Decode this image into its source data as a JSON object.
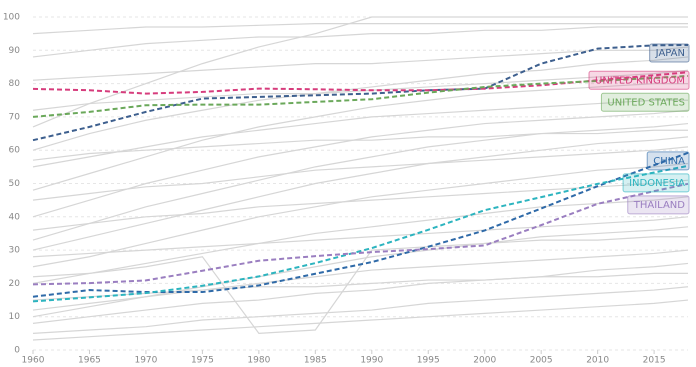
{
  "chart_data": {
    "type": "line",
    "x": [
      1960,
      1965,
      1970,
      1975,
      1980,
      1985,
      1990,
      1995,
      2000,
      2005,
      2010,
      2015,
      2018
    ],
    "xlim": [
      1960,
      2018
    ],
    "xticks": [
      1960,
      1965,
      1970,
      1975,
      1980,
      1985,
      1990,
      1995,
      2000,
      2005,
      2010,
      2015
    ],
    "ylim": [
      0,
      100
    ],
    "yticks": [
      0,
      10,
      20,
      30,
      40,
      50,
      60,
      70,
      80,
      90,
      100
    ],
    "grid": true,
    "series": [
      {
        "color": "#d6d6d6",
        "values": [
          95,
          96,
          97,
          97,
          97.5,
          98,
          98,
          98,
          98,
          98,
          98,
          98,
          98
        ]
      },
      {
        "color": "#d6d6d6",
        "values": [
          88,
          90,
          92,
          93,
          94,
          94,
          95,
          95,
          96,
          96,
          97,
          97,
          97
        ]
      },
      {
        "color": "#d6d6d6",
        "values": [
          67,
          74,
          80,
          86,
          91,
          95,
          100,
          100,
          100,
          100,
          100,
          100,
          100
        ]
      },
      {
        "color": "#d6d6d6",
        "values": [
          81,
          82,
          83,
          84,
          85,
          86,
          86,
          87,
          88,
          89,
          90,
          90,
          91
        ]
      },
      {
        "color": "#d6d6d6",
        "values": [
          60,
          65,
          69,
          72,
          75,
          77,
          79,
          81,
          83,
          84,
          86,
          87,
          88
        ]
      },
      {
        "color": "#d6d6d6",
        "values": [
          72,
          74,
          75,
          76,
          77,
          77,
          78,
          79,
          80,
          81,
          82,
          83,
          84
        ]
      },
      {
        "color": "#d6d6d6",
        "values": [
          48,
          53,
          58,
          63,
          67,
          70,
          73,
          75,
          77,
          78,
          79,
          80,
          80
        ]
      },
      {
        "color": "#d6d6d6",
        "values": [
          55,
          58,
          61,
          64,
          66,
          68,
          70,
          71,
          72,
          73,
          74,
          75,
          75
        ]
      },
      {
        "color": "#d6d6d6",
        "values": [
          40,
          45,
          50,
          54,
          58,
          61,
          64,
          66,
          68,
          69,
          70,
          71,
          72
        ]
      },
      {
        "color": "#d6d6d6",
        "values": [
          33,
          38,
          43,
          47,
          51,
          55,
          58,
          61,
          63,
          65,
          66,
          67,
          68
        ]
      },
      {
        "color": "#d6d6d6",
        "values": [
          57,
          59,
          60,
          61,
          62,
          63,
          63,
          64,
          64,
          65,
          65,
          66,
          66
        ]
      },
      {
        "color": "#d6d6d6",
        "values": [
          30,
          34,
          38,
          42,
          46,
          50,
          53,
          56,
          58,
          60,
          62,
          63,
          64
        ]
      },
      {
        "color": "#d6d6d6",
        "values": [
          45,
          47,
          49,
          50,
          52,
          54,
          55,
          56,
          57,
          58,
          59,
          60,
          61
        ]
      },
      {
        "color": "#d6d6d6",
        "values": [
          25,
          28,
          32,
          36,
          40,
          43,
          46,
          48,
          50,
          52,
          54,
          55,
          56
        ]
      },
      {
        "color": "#d6d6d6",
        "values": [
          36,
          38,
          40,
          41,
          43,
          44,
          45,
          46,
          47,
          48,
          49,
          50,
          51
        ]
      },
      {
        "color": "#d6d6d6",
        "values": [
          20,
          23,
          26,
          29,
          32,
          35,
          37,
          39,
          41,
          43,
          44,
          45,
          46
        ]
      },
      {
        "color": "#d6d6d6",
        "values": [
          28,
          29,
          30,
          31,
          32,
          33,
          34,
          35,
          36,
          37,
          38,
          39,
          40
        ]
      },
      {
        "color": "#d6d6d6",
        "values": [
          10,
          13,
          16,
          19,
          22,
          25,
          28,
          30,
          32,
          34,
          35,
          36,
          37
        ]
      },
      {
        "color": "#d6d6d6",
        "values": [
          22,
          23,
          25,
          28,
          5,
          6,
          30,
          31,
          32,
          33,
          33,
          34,
          34
        ]
      },
      {
        "color": "#d6d6d6",
        "values": [
          12,
          14,
          16,
          18,
          20,
          22,
          24,
          25,
          26,
          27,
          28,
          29,
          30
        ]
      },
      {
        "color": "#d6d6d6",
        "values": [
          8,
          10,
          12,
          14,
          15,
          17,
          18,
          20,
          21,
          22,
          24,
          25,
          26
        ]
      },
      {
        "color": "#d6d6d6",
        "values": [
          15,
          16,
          17,
          18,
          19,
          19,
          20,
          21,
          21,
          22,
          22,
          23,
          23
        ]
      },
      {
        "color": "#d6d6d6",
        "values": [
          5,
          6,
          7,
          9,
          10,
          11,
          12,
          14,
          15,
          16,
          17,
          18,
          19
        ]
      },
      {
        "color": "#d6d6d6",
        "values": [
          3,
          4,
          5,
          6,
          7,
          8,
          9,
          10,
          11,
          12,
          13,
          14,
          15
        ]
      },
      {
        "name": "JAPAN",
        "color": "#3d5f8e",
        "values": [
          63,
          67,
          71.5,
          75.5,
          76,
          76.5,
          77,
          78,
          78.5,
          86,
          90.5,
          91.5,
          91.6
        ]
      },
      {
        "name": "UNITED KINGDOM",
        "color": "#d63c7c",
        "values": [
          78.4,
          78,
          77,
          77.5,
          78.5,
          78.3,
          78,
          78,
          78.5,
          79.5,
          81,
          82.5,
          83.4
        ]
      },
      {
        "name": "UNITED STATES",
        "color": "#6aa85a",
        "values": [
          70,
          71.5,
          73.5,
          73.7,
          73.7,
          74.5,
          75.3,
          77.3,
          79,
          80,
          80.8,
          81.7,
          82.3
        ]
      },
      {
        "name": "CHINA",
        "color": "#2f6aa8",
        "values": [
          16,
          18,
          17.4,
          17.4,
          19.4,
          22.9,
          26.4,
          31,
          35.9,
          42.5,
          49.2,
          55.5,
          59.2
        ]
      },
      {
        "name": "INDONESIA",
        "color": "#2cb4bf",
        "values": [
          14.6,
          15.8,
          17.1,
          19.3,
          22.1,
          26.1,
          30.6,
          36.1,
          42,
          45.9,
          49.9,
          53.3,
          55.3
        ]
      },
      {
        "name": "THAILAND",
        "color": "#9a7ec0",
        "values": [
          19.7,
          20.1,
          20.9,
          23.8,
          26.8,
          28.2,
          29.4,
          30.3,
          31.4,
          37.5,
          43.9,
          47.7,
          49.9
        ]
      }
    ]
  }
}
